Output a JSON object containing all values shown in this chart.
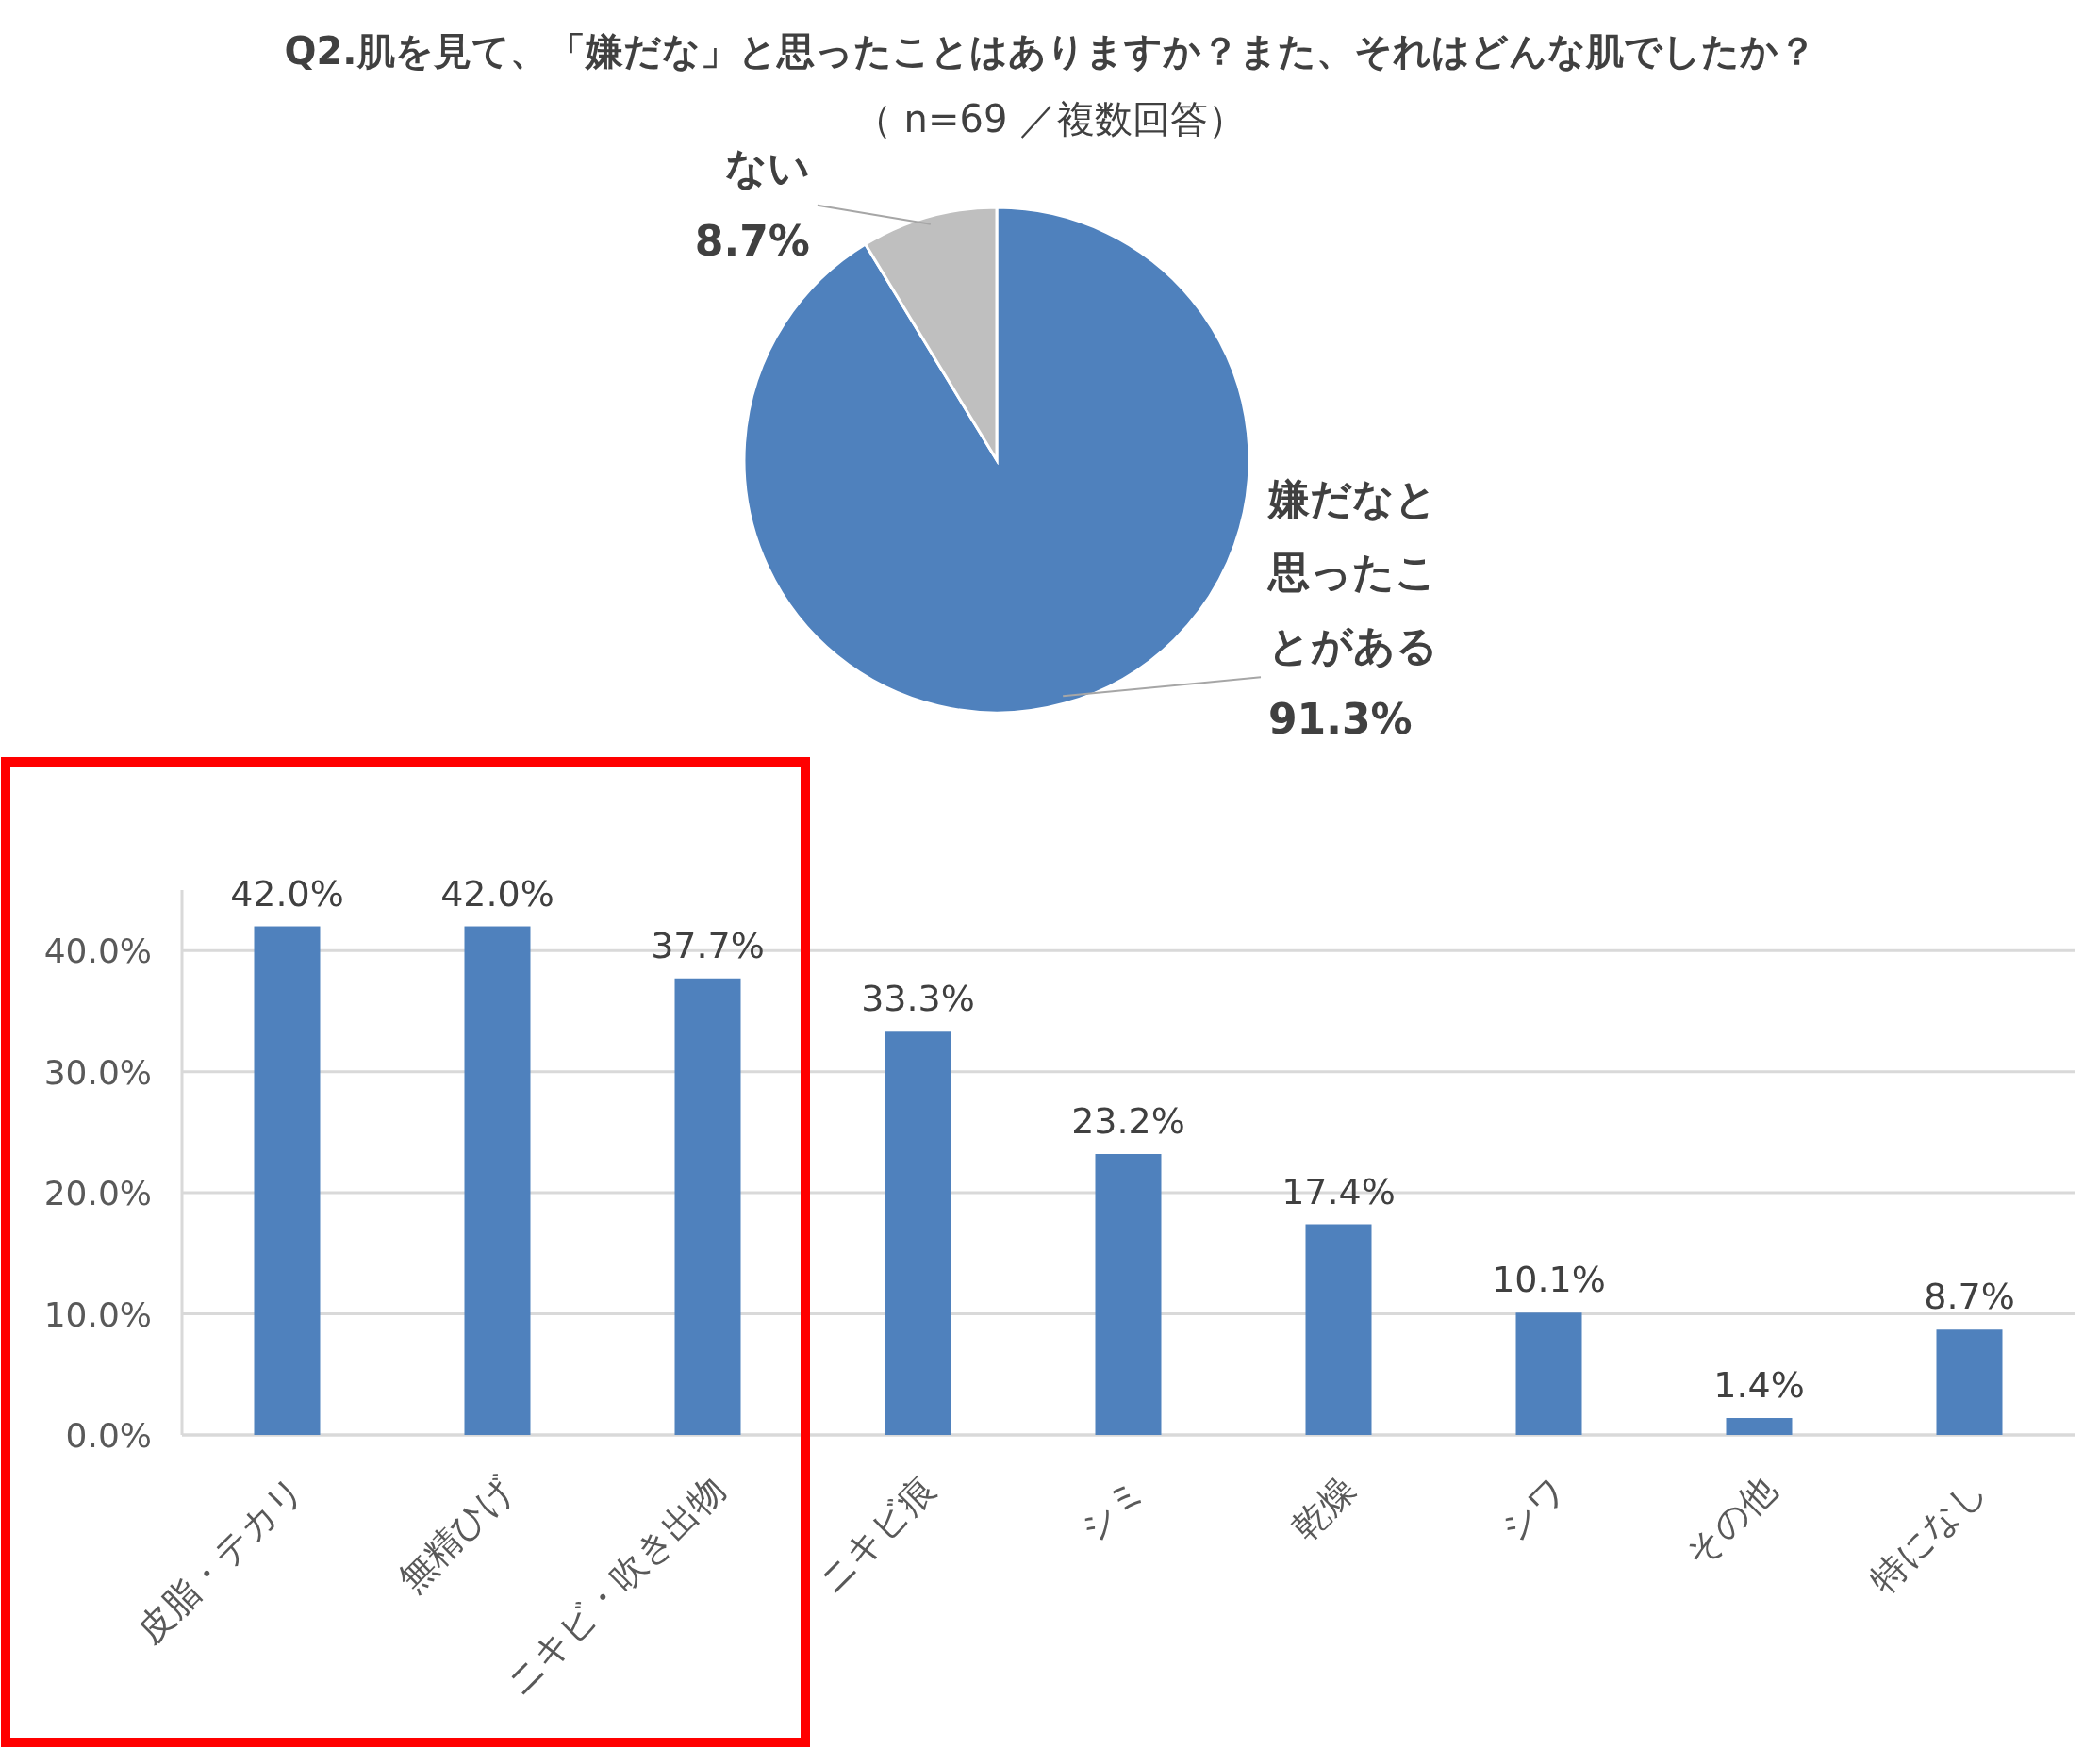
{
  "chart_data": [
    {
      "type": "pie",
      "title": "Q2.肌を見て、「嫌だな」と思ったことはありますか？また、それはどんな肌でしたか？",
      "subtitle": "（ n=69 ／複数回答）",
      "categories": [
        "嫌だなと思ったことがある",
        "ない"
      ],
      "values": [
        91.3,
        8.7
      ],
      "colors": [
        "#4f81bd",
        "#bfbfbf"
      ],
      "value_labels": [
        "91.3%",
        "8.7%"
      ]
    },
    {
      "type": "bar",
      "categories": [
        "皮脂・テカリ",
        "無精ひげ",
        "ニキビ・吹き出物",
        "ニキビ痕",
        "シミ",
        "乾燥",
        "シワ",
        "その他",
        "特になし"
      ],
      "values": [
        42.0,
        42.0,
        37.7,
        33.3,
        23.2,
        17.4,
        10.1,
        1.4,
        8.7
      ],
      "color": "#4f81bd",
      "value_labels": [
        "42.0%",
        "42.0%",
        "37.7%",
        "33.3%",
        "23.2%",
        "17.4%",
        "10.1%",
        "1.4%",
        "8.7%"
      ],
      "ylim": [
        0,
        45
      ],
      "yticks": [
        {
          "value": 0,
          "label": "0.0%"
        },
        {
          "value": 10,
          "label": "10.0%"
        },
        {
          "value": 20,
          "label": "20.0%"
        },
        {
          "value": 30,
          "label": "30.0%"
        },
        {
          "value": 40,
          "label": "40.0%"
        }
      ],
      "grid": "y"
    }
  ]
}
